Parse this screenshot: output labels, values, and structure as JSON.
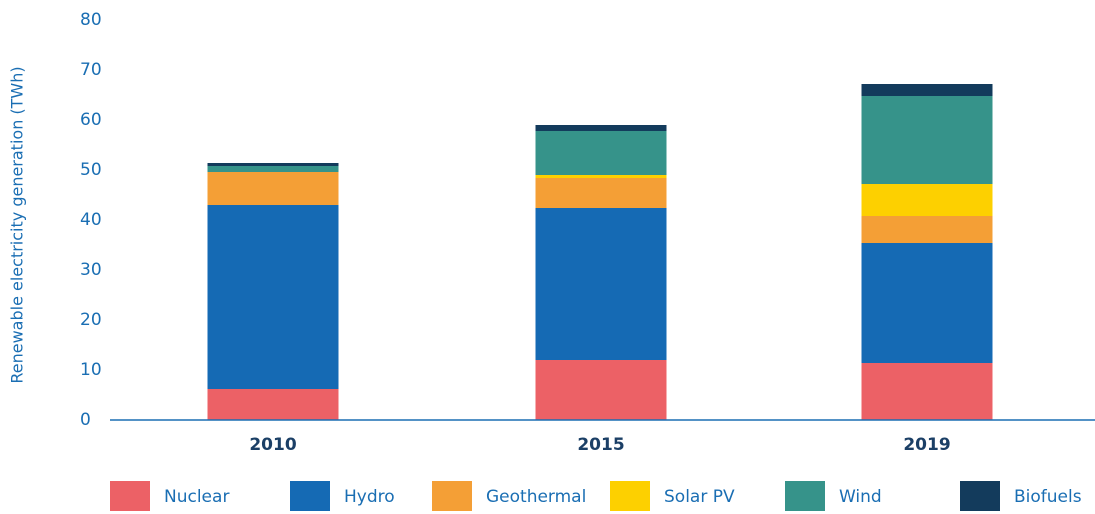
{
  "chart_data": {
    "type": "stacked_bar",
    "y_label": "Renewable electricity generation (TWh)",
    "categories": [
      "2010",
      "2015",
      "2019"
    ],
    "series": [
      {
        "name": "Nuclear",
        "color": "#ec6166",
        "values": [
          6.2,
          12,
          11.4
        ]
      },
      {
        "name": "Hydro",
        "color": "#156ab4",
        "values": [
          36.8,
          30.4,
          24
        ]
      },
      {
        "name": "Geothermal",
        "color": "#f49f36",
        "values": [
          6.6,
          6,
          5.4
        ]
      },
      {
        "name": "Solar PV",
        "color": "#fdd000",
        "values": [
          0,
          0.6,
          6.4
        ]
      },
      {
        "name": "Wind",
        "color": "#36938a",
        "values": [
          1.2,
          8.8,
          17.6
        ]
      },
      {
        "name": "Biofuels",
        "color": "#133b5c",
        "values": [
          0.6,
          1.2,
          2.4
        ]
      }
    ],
    "ylim": [
      0,
      80
    ],
    "yticks": [
      0,
      10,
      20,
      30,
      40,
      50,
      60,
      70,
      80
    ],
    "legend": "bottom"
  }
}
